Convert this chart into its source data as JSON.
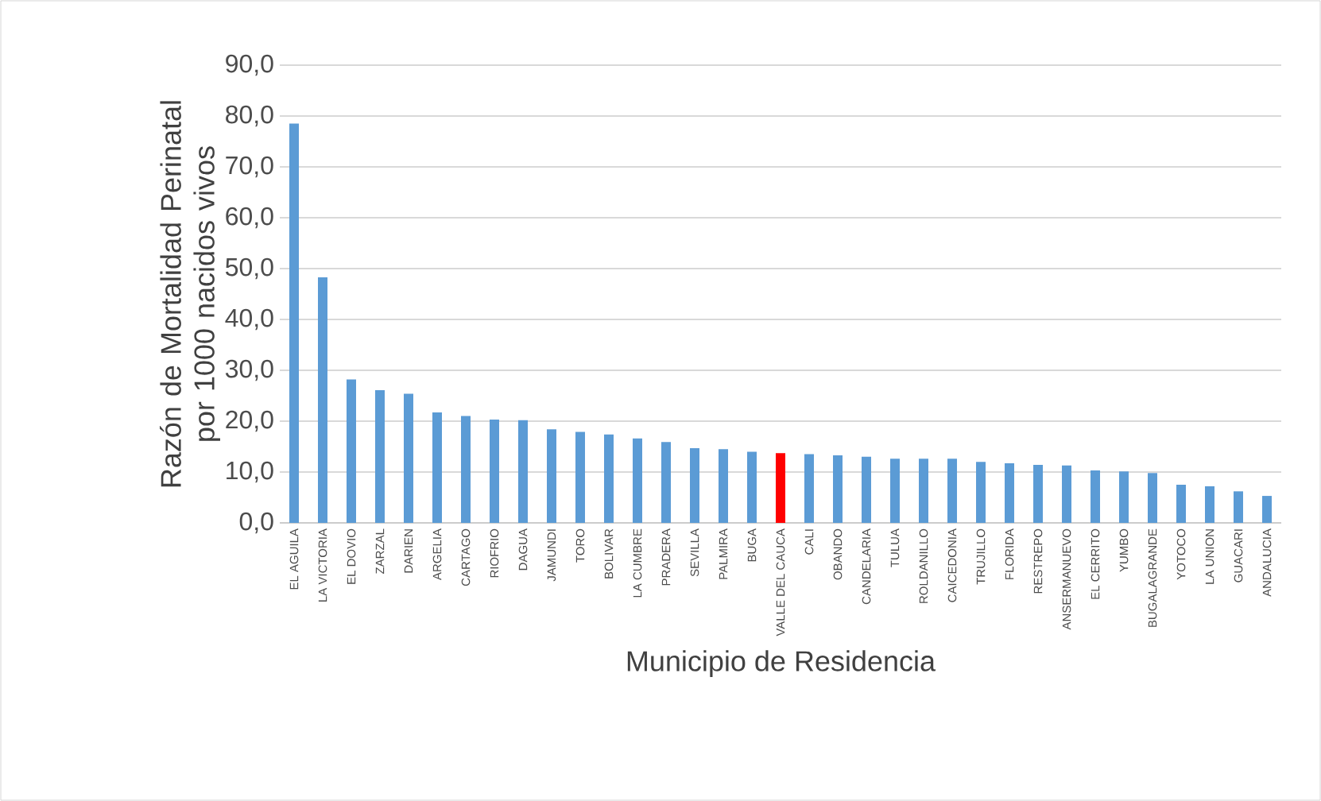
{
  "chart_data": {
    "type": "bar",
    "xlabel": "Municipio de Residencia",
    "ylabel": "Razón de Mortalidad Perinatal por 1000 nacidos vivos",
    "categories": [
      "EL AGUILA",
      "LA VICTORIA",
      "EL DOVIO",
      "ZARZAL",
      "DARIEN",
      "ARGELIA",
      "CARTAGO",
      "RIOFRIO",
      "DAGUA",
      "JAMUNDI",
      "TORO",
      "BOLIVAR",
      "LA CUMBRE",
      "PRADERA",
      "SEVILLA",
      "PALMIRA",
      "BUGA",
      "VALLE DEL CAUCA",
      "CALI",
      "OBANDO",
      "CANDELARIA",
      "TULUA",
      "ROLDANILLO",
      "CAICEDONIA",
      "TRUJILLO",
      "FLORIDA",
      "RESTREPO",
      "ANSERMANUEVO",
      "EL CERRITO",
      "YUMBO",
      "BUGALAGRANDE",
      "YOTOCO",
      "LA UNION",
      "GUACARI",
      "ANDALUCIA"
    ],
    "values": [
      78.5,
      48.3,
      28.2,
      26.1,
      25.4,
      21.7,
      21.0,
      20.3,
      20.2,
      18.4,
      17.9,
      17.4,
      16.6,
      15.9,
      14.7,
      14.5,
      14.0,
      13.7,
      13.5,
      13.3,
      13.0,
      12.6,
      12.6,
      12.6,
      12.0,
      11.7,
      11.4,
      11.3,
      10.3,
      10.1,
      9.8,
      7.5,
      7.2,
      6.2,
      5.3
    ],
    "colors": [
      "#5b9bd5",
      "#5b9bd5",
      "#5b9bd5",
      "#5b9bd5",
      "#5b9bd5",
      "#5b9bd5",
      "#5b9bd5",
      "#5b9bd5",
      "#5b9bd5",
      "#5b9bd5",
      "#5b9bd5",
      "#5b9bd5",
      "#5b9bd5",
      "#5b9bd5",
      "#5b9bd5",
      "#5b9bd5",
      "#5b9bd5",
      "#ff0000",
      "#5b9bd5",
      "#5b9bd5",
      "#5b9bd5",
      "#5b9bd5",
      "#5b9bd5",
      "#5b9bd5",
      "#5b9bd5",
      "#5b9bd5",
      "#5b9bd5",
      "#5b9bd5",
      "#5b9bd5",
      "#5b9bd5",
      "#5b9bd5",
      "#5b9bd5",
      "#5b9bd5",
      "#5b9bd5",
      "#5b9bd5"
    ],
    "ylim": [
      0,
      90
    ],
    "yticks": [
      {
        "value": 0,
        "label": "0,0"
      },
      {
        "value": 10,
        "label": "10,0"
      },
      {
        "value": 20,
        "label": "20,0"
      },
      {
        "value": 30,
        "label": "30,0"
      },
      {
        "value": 40,
        "label": "40,0"
      },
      {
        "value": 50,
        "label": "50,0"
      },
      {
        "value": 60,
        "label": "60,0"
      },
      {
        "value": 70,
        "label": "70,0"
      },
      {
        "value": 80,
        "label": "80,0"
      },
      {
        "value": 90,
        "label": "90,0"
      }
    ],
    "grid": "y"
  }
}
